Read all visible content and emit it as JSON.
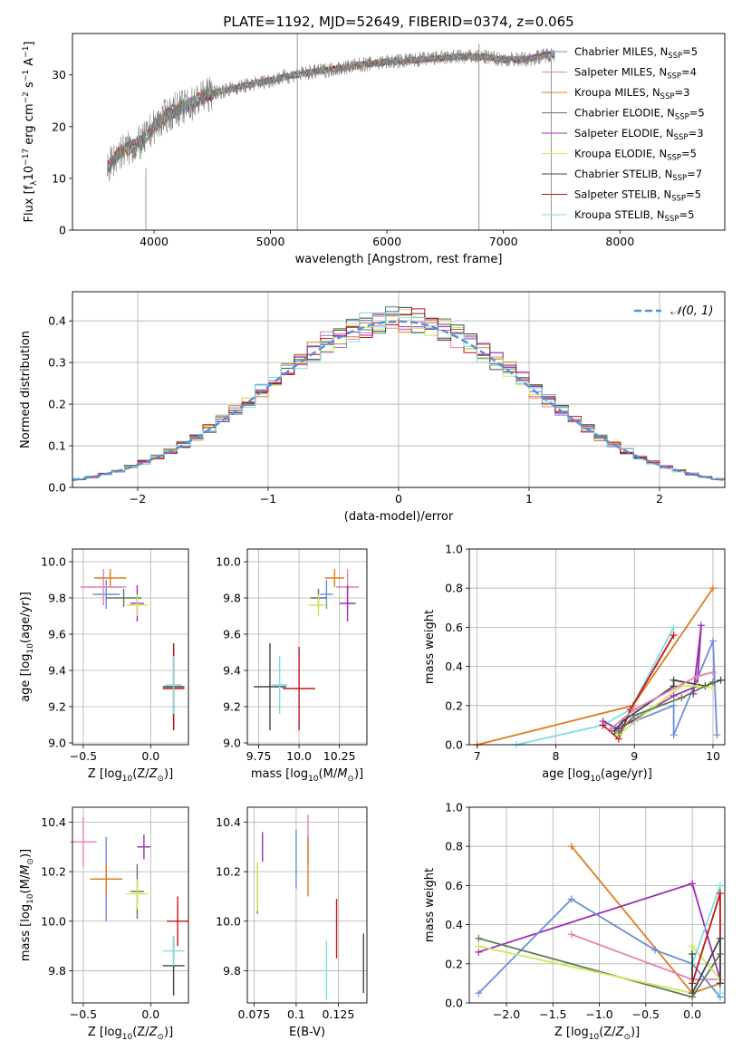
{
  "title": "PLATE=1192, MJD=52649, FIBERID=0374, z=0.065",
  "colors": {
    "Chabrier MILES": "#6a8fd8",
    "Salpeter MILES": "#e47fb4",
    "Kroupa MILES": "#e07b1f",
    "Chabrier ELODIE": "#5f7a5a",
    "Salpeter ELODIE": "#9b2fb0",
    "Kroupa ELODIE": "#cfe85a",
    "Chabrier STELIB": "#444444",
    "Salpeter STELIB": "#c41616",
    "Kroupa STELIB": "#7fdde0"
  },
  "chart_data": [
    {
      "id": "spectrum",
      "type": "line",
      "title": "PLATE=1192, MJD=52649, FIBERID=0374, z=0.065",
      "xlabel": "wavelength [Angstrom, rest frame]",
      "ylabel": "Flux [f_λ10^-17 erg cm^-2 s^-1 A^-1]",
      "xlim": [
        3300,
        8900
      ],
      "ylim": [
        0,
        38
      ],
      "xticks": [
        4000,
        5000,
        6000,
        7000,
        8000
      ],
      "yticks": [
        0,
        10,
        20,
        30
      ],
      "grid": false,
      "legend_position": "top-right",
      "legend": [
        {
          "name": "Chabrier MILES",
          "nssp": "5"
        },
        {
          "name": "Salpeter MILES",
          "nssp": "4"
        },
        {
          "name": "Kroupa MILES",
          "nssp": "3"
        },
        {
          "name": "Chabrier ELODIE",
          "nssp": "5"
        },
        {
          "name": "Salpeter ELODIE",
          "nssp": "3"
        },
        {
          "name": "Kroupa ELODIE",
          "nssp": "5"
        },
        {
          "name": "Chabrier STELIB",
          "nssp": "7"
        },
        {
          "name": "Salpeter STELIB",
          "nssp": "5"
        },
        {
          "name": "Kroupa STELIB",
          "nssp": "5"
        }
      ],
      "continuum": [
        [
          3600,
          12
        ],
        [
          3700,
          15
        ],
        [
          3800,
          16
        ],
        [
          3900,
          17
        ],
        [
          4000,
          20
        ],
        [
          4100,
          22
        ],
        [
          4200,
          23.5
        ],
        [
          4300,
          24
        ],
        [
          4400,
          25.5
        ],
        [
          4500,
          26.5
        ],
        [
          4700,
          27.5
        ],
        [
          5000,
          29
        ],
        [
          5200,
          30
        ],
        [
          5500,
          31
        ],
        [
          5800,
          32
        ],
        [
          6000,
          32.5
        ],
        [
          6300,
          33
        ],
        [
          6600,
          33.5
        ],
        [
          6800,
          33.5
        ],
        [
          7000,
          33
        ],
        [
          7200,
          33
        ],
        [
          7400,
          34
        ]
      ],
      "spikes": [
        {
          "x": 3930,
          "low": 0,
          "high": 12
        },
        {
          "x": 5230,
          "low": 0,
          "high": 38
        },
        {
          "x": 6790,
          "low": 0,
          "high": 36
        },
        {
          "x": 7410,
          "low": 0,
          "high": 33
        }
      ]
    },
    {
      "id": "residuals",
      "type": "histogram",
      "xlabel": "(data-model)/error",
      "ylabel": "Normed distribution",
      "xlim": [
        -2.5,
        2.5
      ],
      "ylim": [
        0,
        0.47
      ],
      "xticks": [
        -2,
        -1,
        0,
        1,
        2
      ],
      "yticks": [
        0.0,
        0.1,
        0.2,
        0.3,
        0.4
      ],
      "grid": true,
      "legend_position": "top-right",
      "legend": [
        "𝒩(0, 1)"
      ],
      "bin_width": 0.1
    },
    {
      "id": "age-vs-Z",
      "type": "scatter",
      "xlabel": "Z [log10(Z/Z⊙)]",
      "ylabel": "age [log10(age/yr)]",
      "xlim": [
        -0.58,
        0.28
      ],
      "ylim": [
        8.99,
        10.07
      ],
      "xticks": [
        -0.5,
        0.0
      ],
      "yticks": [
        9.0,
        9.2,
        9.4,
        9.6,
        9.8,
        10.0
      ],
      "grid": true,
      "points": [
        {
          "s": "Chabrier MILES",
          "x": -0.33,
          "xe": 0.1,
          "y": 9.82,
          "ye": 0.08
        },
        {
          "s": "Salpeter MILES",
          "x": -0.35,
          "xe": 0.17,
          "y": 9.86,
          "ye": 0.1
        },
        {
          "s": "Kroupa MILES",
          "x": -0.3,
          "xe": 0.12,
          "y": 9.91,
          "ye": 0.05
        },
        {
          "s": "Chabrier ELODIE",
          "x": -0.2,
          "xe": 0.13,
          "y": 9.8,
          "ye": 0.05
        },
        {
          "s": "Salpeter ELODIE",
          "x": -0.1,
          "xe": 0.05,
          "y": 9.77,
          "ye": 0.1
        },
        {
          "s": "Kroupa ELODIE",
          "x": -0.1,
          "xe": 0.08,
          "y": 9.76,
          "ye": 0.06
        },
        {
          "s": "Chabrier STELIB",
          "x": 0.17,
          "xe": 0.08,
          "y": 9.31,
          "ye": 0.24
        },
        {
          "s": "Salpeter STELIB",
          "x": 0.17,
          "xe": 0.08,
          "y": 9.3,
          "ye": 0.23
        },
        {
          "s": "Kroupa STELIB",
          "x": 0.17,
          "xe": 0.06,
          "y": 9.32,
          "ye": 0.16
        }
      ]
    },
    {
      "id": "age-vs-mass",
      "type": "scatter",
      "xlabel": "mass [log10(M/M⊙)]",
      "ylabel": "",
      "xlim": [
        9.68,
        10.42
      ],
      "ylim": [
        8.99,
        10.07
      ],
      "xticks": [
        9.75,
        10.0,
        10.25
      ],
      "yticks": [
        9.0,
        9.2,
        9.4,
        9.6,
        9.8,
        10.0
      ],
      "grid": true,
      "points": [
        {
          "s": "Chabrier MILES",
          "x": 10.17,
          "xe": 0.04,
          "y": 9.82,
          "ye": 0.08
        },
        {
          "s": "Salpeter MILES",
          "x": 10.3,
          "xe": 0.07,
          "y": 9.86,
          "ye": 0.1
        },
        {
          "s": "Kroupa MILES",
          "x": 10.22,
          "xe": 0.06,
          "y": 9.91,
          "ye": 0.05
        },
        {
          "s": "Chabrier ELODIE",
          "x": 10.12,
          "xe": 0.05,
          "y": 9.8,
          "ye": 0.05
        },
        {
          "s": "Salpeter ELODIE",
          "x": 10.3,
          "xe": 0.05,
          "y": 9.77,
          "ye": 0.1
        },
        {
          "s": "Kroupa ELODIE",
          "x": 10.12,
          "xe": 0.06,
          "y": 9.76,
          "ye": 0.06
        },
        {
          "s": "Chabrier STELIB",
          "x": 9.82,
          "xe": 0.1,
          "y": 9.31,
          "ye": 0.24
        },
        {
          "s": "Salpeter STELIB",
          "x": 10.0,
          "xe": 0.1,
          "y": 9.3,
          "ye": 0.23
        },
        {
          "s": "Kroupa STELIB",
          "x": 9.88,
          "xe": 0.05,
          "y": 9.32,
          "ye": 0.16
        }
      ]
    },
    {
      "id": "weight-vs-age",
      "type": "line",
      "xlabel": "age [log10(age/yr)]",
      "ylabel": "mass weight",
      "xlim": [
        6.9,
        10.15
      ],
      "ylim": [
        0.0,
        1.0
      ],
      "xticks": [
        7,
        8,
        9,
        10
      ],
      "yticks": [
        0.0,
        0.2,
        0.4,
        0.6,
        0.8,
        1.0
      ],
      "grid": true,
      "series": [
        {
          "s": "Kroupa MILES",
          "x": [
            7.0,
            8.98,
            10.0
          ],
          "y": [
            0.0,
            0.2,
            0.8
          ]
        },
        {
          "s": "Kroupa STELIB",
          "x": [
            7.5,
            8.6,
            8.95,
            9.5
          ],
          "y": [
            0.0,
            0.1,
            0.18,
            0.6
          ]
        },
        {
          "s": "Chabrier MILES",
          "x": [
            8.7,
            9.0,
            9.5,
            9.5,
            10.0,
            10.05
          ],
          "y": [
            0.08,
            0.12,
            0.2,
            0.05,
            0.53,
            0.05
          ]
        },
        {
          "s": "Salpeter ELODIE",
          "x": [
            8.6,
            8.8,
            9.5,
            9.8,
            9.85,
            9.75
          ],
          "y": [
            0.12,
            0.08,
            0.25,
            0.3,
            0.61,
            0.26
          ]
        },
        {
          "s": "Salpeter STELIB",
          "x": [
            8.6,
            8.8,
            8.95,
            9.5
          ],
          "y": [
            0.1,
            0.03,
            0.18,
            0.56
          ]
        },
        {
          "s": "Chabrier STELIB",
          "x": [
            8.75,
            8.85,
            9.5,
            9.5,
            9.9,
            10.1
          ],
          "y": [
            0.07,
            0.12,
            0.3,
            0.33,
            0.3,
            0.33
          ]
        },
        {
          "s": "Kroupa ELODIE",
          "x": [
            8.8,
            9.2,
            9.6,
            9.8,
            10.0
          ],
          "y": [
            0.05,
            0.18,
            0.3,
            0.3,
            0.29
          ]
        },
        {
          "s": "Salpeter MILES",
          "x": [
            8.7,
            9.0,
            9.8,
            10.0
          ],
          "y": [
            0.08,
            0.18,
            0.35,
            0.37
          ]
        },
        {
          "s": "Chabrier ELODIE",
          "x": [
            8.8,
            9.0,
            9.6,
            10.0
          ],
          "y": [
            0.06,
            0.15,
            0.24,
            0.32
          ]
        }
      ]
    },
    {
      "id": "mass-vs-Z",
      "type": "scatter",
      "xlabel": "Z [log10(Z/Z⊙)]",
      "ylabel": "mass [log10(M/M⊙)]",
      "xlim": [
        -0.58,
        0.28
      ],
      "ylim": [
        9.67,
        10.46
      ],
      "xticks": [
        -0.5,
        0.0
      ],
      "yticks": [
        9.8,
        10.0,
        10.2,
        10.4
      ],
      "grid": true,
      "points": [
        {
          "s": "Chabrier MILES",
          "x": -0.33,
          "xe": 0.1,
          "y": 10.17,
          "ye": 0.17
        },
        {
          "s": "Salpeter MILES",
          "x": -0.5,
          "xe": 0.1,
          "y": 10.32,
          "ye": 0.1
        },
        {
          "s": "Kroupa MILES",
          "x": -0.33,
          "xe": 0.12,
          "y": 10.17,
          "ye": 0.06
        },
        {
          "s": "Chabrier ELODIE",
          "x": -0.1,
          "xe": 0.05,
          "y": 10.12,
          "ye": 0.11
        },
        {
          "s": "Salpeter ELODIE",
          "x": -0.05,
          "xe": 0.05,
          "y": 10.3,
          "ye": 0.05
        },
        {
          "s": "Kroupa ELODIE",
          "x": -0.1,
          "xe": 0.08,
          "y": 10.11,
          "ye": 0.06
        },
        {
          "s": "Chabrier STELIB",
          "x": 0.17,
          "xe": 0.08,
          "y": 9.82,
          "ye": 0.12
        },
        {
          "s": "Salpeter STELIB",
          "x": 0.2,
          "xe": 0.08,
          "y": 10.0,
          "ye": 0.1
        },
        {
          "s": "Kroupa STELIB",
          "x": 0.17,
          "xe": 0.08,
          "y": 9.88,
          "ye": 0.06
        }
      ]
    },
    {
      "id": "mass-vs-ebv",
      "type": "scatter",
      "xlabel": "E(B-V)",
      "ylabel": "",
      "xlim": [
        0.071,
        0.142
      ],
      "ylim": [
        9.67,
        10.46
      ],
      "xticks": [
        0.075,
        0.1,
        0.125
      ],
      "yticks": [
        9.8,
        10.0,
        10.2,
        10.4
      ],
      "grid": true,
      "points": [
        {
          "s": "Chabrier MILES",
          "x": 0.1,
          "xe": 0.0,
          "y": 10.25,
          "ye": 0.12
        },
        {
          "s": "Salpeter MILES",
          "x": 0.107,
          "xe": 0.0,
          "y": 10.33,
          "ye": 0.1
        },
        {
          "s": "Kroupa MILES",
          "x": 0.107,
          "xe": 0.0,
          "y": 10.22,
          "ye": 0.12
        },
        {
          "s": "Chabrier ELODIE",
          "x": 0.077,
          "xe": 0.0,
          "y": 10.13,
          "ye": 0.1
        },
        {
          "s": "Salpeter ELODIE",
          "x": 0.08,
          "xe": 0.0,
          "y": 10.3,
          "ye": 0.06
        },
        {
          "s": "Kroupa ELODIE",
          "x": 0.077,
          "xe": 0.0,
          "y": 10.14,
          "ye": 0.1
        },
        {
          "s": "Chabrier STELIB",
          "x": 0.14,
          "xe": 0.0,
          "y": 9.83,
          "ye": 0.12
        },
        {
          "s": "Salpeter STELIB",
          "x": 0.124,
          "xe": 0.0,
          "y": 9.97,
          "ye": 0.12
        },
        {
          "s": "Kroupa STELIB",
          "x": 0.118,
          "xe": 0.0,
          "y": 9.8,
          "ye": 0.12
        }
      ]
    },
    {
      "id": "weight-vs-Z",
      "type": "line",
      "xlabel": "Z [log10(Z/Z⊙)]",
      "ylabel": "mass weight",
      "xlim": [
        -2.4,
        0.35
      ],
      "ylim": [
        0.0,
        1.0
      ],
      "xticks": [
        -2.0,
        -1.5,
        -1.0,
        -0.5,
        0.0
      ],
      "yticks": [
        0.0,
        0.2,
        0.4,
        0.6,
        0.8,
        1.0
      ],
      "grid": true,
      "series": [
        {
          "s": "Kroupa MILES",
          "x": [
            -1.3,
            0.0,
            0.3
          ],
          "y": [
            0.8,
            0.05,
            0.1
          ]
        },
        {
          "s": "Salpeter ELODIE",
          "x": [
            -2.3,
            0.0,
            0.3
          ],
          "y": [
            0.26,
            0.61,
            0.12
          ]
        },
        {
          "s": "Chabrier MILES",
          "x": [
            -2.3,
            -1.3,
            -0.4,
            0.0,
            0.3
          ],
          "y": [
            0.05,
            0.53,
            0.27,
            0.2,
            0.03
          ]
        },
        {
          "s": "Salpeter MILES",
          "x": [
            -1.3,
            0.0,
            0.3
          ],
          "y": [
            0.35,
            0.12,
            0.12
          ]
        },
        {
          "s": "Chabrier ELODIE",
          "x": [
            -2.3,
            0.0,
            0.3
          ],
          "y": [
            0.33,
            0.03,
            0.25
          ]
        },
        {
          "s": "Kroupa ELODIE",
          "x": [
            -2.3,
            0.0,
            0.0,
            0.3
          ],
          "y": [
            0.29,
            0.05,
            0.29,
            0.12
          ]
        },
        {
          "s": "Kroupa STELIB",
          "x": [
            0.0,
            0.3,
            0.3
          ],
          "y": [
            0.2,
            0.6,
            0.05
          ]
        },
        {
          "s": "Salpeter STELIB",
          "x": [
            0.0,
            0.3,
            0.3
          ],
          "y": [
            0.1,
            0.56,
            0.1
          ]
        },
        {
          "s": "Chabrier STELIB",
          "x": [
            0.0,
            0.0,
            0.3,
            0.3
          ],
          "y": [
            0.25,
            0.05,
            0.33,
            0.1
          ]
        }
      ]
    }
  ]
}
